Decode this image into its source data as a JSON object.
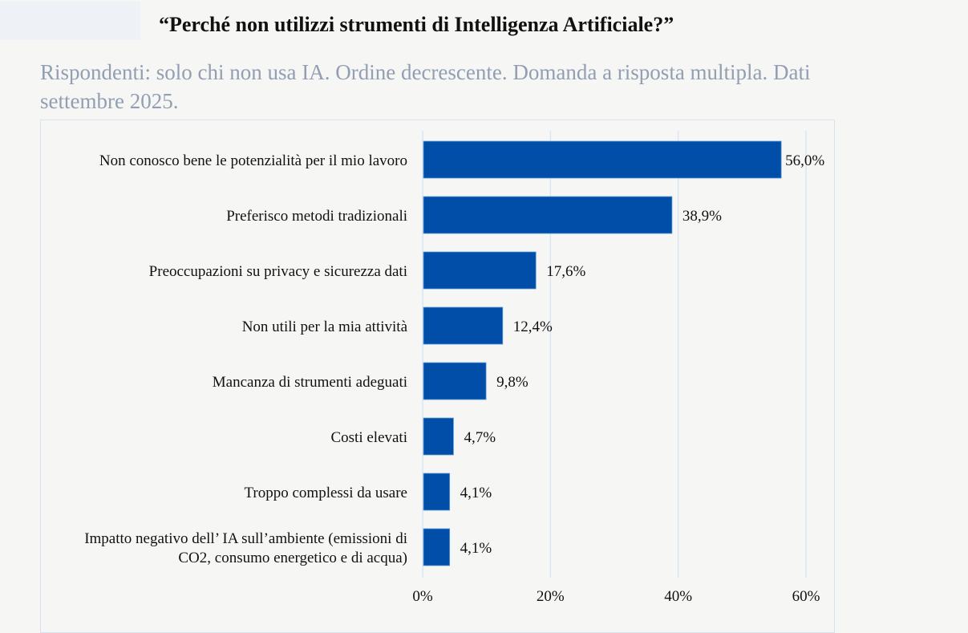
{
  "header": {
    "title": "“Perché non utilizzi strumenti di Intelligenza Artificiale?”",
    "subtitle": "Rispondenti: solo chi non usa IA.  Ordine decrescente. Domanda a risposta multipla. Dati settembre 2025."
  },
  "chart_data": {
    "type": "bar",
    "orientation": "horizontal",
    "categories": [
      "Non conosco bene le potenzialità per il mio lavoro",
      "Preferisco metodi tradizionali",
      "Preoccupazioni su privacy e sicurezza dati",
      "Non utili per la mia attività",
      "Mancanza di strumenti adeguati",
      "Costi elevati",
      "Troppo complessi da usare",
      "Impatto negativo dell’ IA sull’ambiente (emissioni di|CO2, consumo energetico e di acqua)"
    ],
    "values": [
      56.0,
      38.9,
      17.6,
      12.4,
      9.8,
      4.7,
      4.1,
      4.1
    ],
    "data_labels": [
      "56,0%",
      "38,9%",
      "17,6%",
      "12,4%",
      "9,8%",
      "4,7%",
      "4,1%",
      "4,1%"
    ],
    "xticks": [
      "0%",
      "20%",
      "40%",
      "60%"
    ],
    "xlim": [
      0,
      60
    ],
    "grid": true,
    "bar_color": "#004ea8"
  }
}
